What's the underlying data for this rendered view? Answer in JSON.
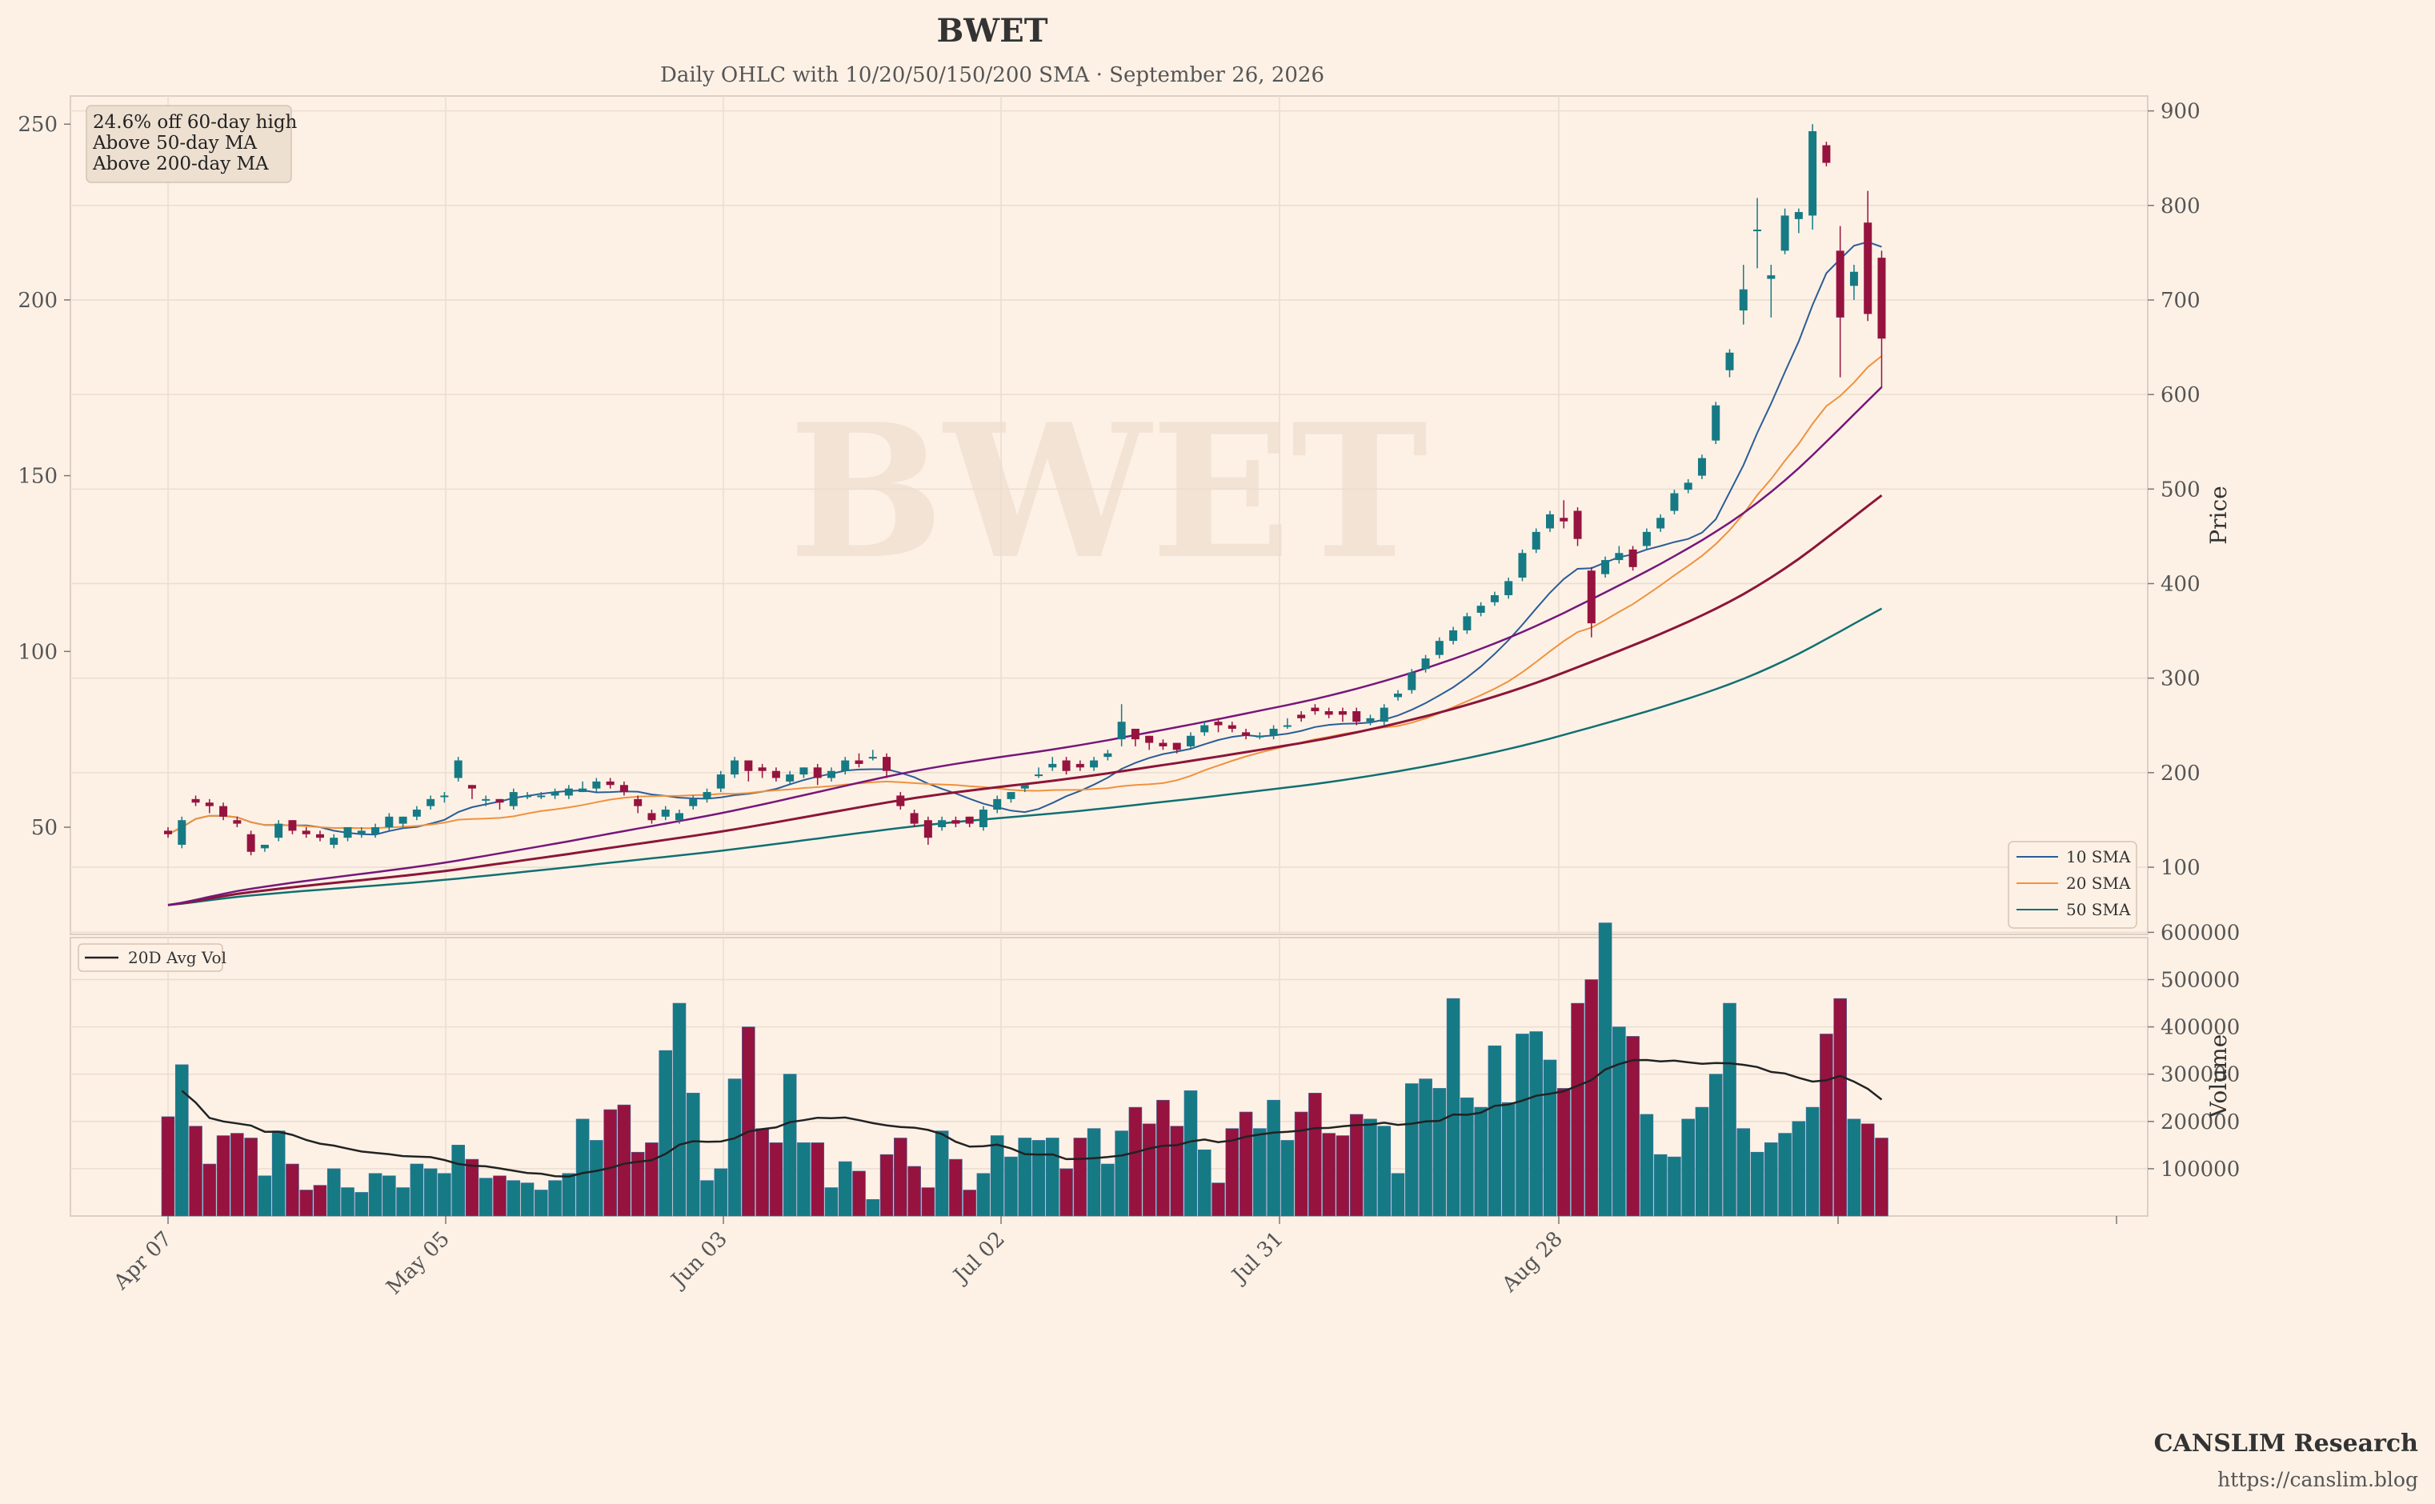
{
  "chart_data": {
    "type": "candlestick",
    "title": "BWET",
    "subtitle": "Daily OHLC with 10/20/50/150/200 SMA  ·  September 26, 2026",
    "watermark": "BWET",
    "x_tick_labels": [
      "Apr 07",
      "May 05",
      "Jun 03",
      "Jul 02",
      "Jul 31",
      "Aug 28"
    ],
    "price_axis": {
      "left_ticks": [
        50,
        100,
        150,
        200,
        250
      ],
      "right_ticks": [
        100,
        200,
        300,
        400,
        500,
        600,
        700,
        800,
        900
      ],
      "ylabel": "Price"
    },
    "volume_axis": {
      "ticks": [
        "100000",
        "200000",
        "300000",
        "400000",
        "500000",
        "600000"
      ],
      "ylabel": "Volume"
    },
    "annotation": [
      "24.6% off 60-day high",
      "Above 50-day MA",
      "Above 200-day MA"
    ],
    "legend": [
      "10 SMA",
      "20 SMA",
      "50 SMA"
    ],
    "volume_legend": "20D Avg Vol",
    "colors": {
      "up": "#167a84",
      "down": "#96133f",
      "sma10": "#2a5d96",
      "sma20": "#f0923c",
      "sma50": "#117070",
      "sma150": "#8c1538",
      "sma200": "#76177a",
      "avg_vol": "#222222"
    },
    "ohlc": [
      [
        49,
        48,
        50,
        47,
        210000
      ],
      [
        45,
        52,
        53,
        44,
        320000
      ],
      [
        58,
        57,
        59,
        56,
        190000
      ],
      [
        57,
        56,
        58,
        54,
        110000
      ],
      [
        56,
        53,
        57,
        52,
        170000
      ],
      [
        52,
        51,
        53,
        50,
        175000
      ],
      [
        48,
        43,
        49,
        42,
        165000
      ],
      [
        44,
        45,
        45,
        43,
        85000
      ],
      [
        47,
        51,
        52,
        46,
        180000
      ],
      [
        52,
        49,
        52,
        48,
        110000
      ],
      [
        49,
        48,
        50,
        47,
        55000
      ],
      [
        48,
        47,
        49,
        46,
        65000
      ],
      [
        45,
        47,
        48,
        44,
        100000
      ],
      [
        47,
        50,
        50,
        46,
        60000
      ],
      [
        48,
        49,
        50,
        47,
        50000
      ],
      [
        48,
        50,
        51,
        47,
        90000
      ],
      [
        50,
        53,
        54,
        49,
        85000
      ],
      [
        51,
        53,
        53,
        50,
        60000
      ],
      [
        53,
        55,
        56,
        52,
        110000
      ],
      [
        56,
        58,
        59,
        55,
        100000
      ],
      [
        59,
        59,
        60,
        57,
        90000
      ],
      [
        64,
        69,
        70,
        63,
        150000
      ],
      [
        62,
        61,
        62,
        58,
        120000
      ],
      [
        58,
        58,
        59,
        56,
        80000
      ],
      [
        58,
        57,
        58,
        55,
        85000
      ],
      [
        56,
        60,
        61,
        55,
        75000
      ],
      [
        59,
        59,
        60,
        58,
        70000
      ],
      [
        59,
        59,
        60,
        58,
        55000
      ],
      [
        59,
        60,
        61,
        58,
        75000
      ],
      [
        59,
        61,
        62,
        58,
        90000
      ],
      [
        60,
        61,
        63,
        60,
        205000
      ],
      [
        61,
        63,
        64,
        60,
        160000
      ],
      [
        63,
        62,
        64,
        61,
        225000
      ],
      [
        62,
        60,
        63,
        59,
        235000
      ],
      [
        58,
        56,
        59,
        54,
        135000
      ],
      [
        54,
        52,
        55,
        51,
        155000
      ],
      [
        53,
        55,
        56,
        52,
        350000
      ],
      [
        52,
        54,
        55,
        51,
        450000
      ],
      [
        56,
        58,
        59,
        55,
        260000
      ],
      [
        58,
        60,
        61,
        57,
        75000
      ],
      [
        61,
        65,
        66,
        60,
        100000
      ],
      [
        65,
        69,
        70,
        64,
        290000
      ],
      [
        69,
        66,
        69,
        63,
        400000
      ],
      [
        67,
        66,
        68,
        64,
        185000
      ],
      [
        66,
        64,
        67,
        63,
        155000
      ],
      [
        63,
        65,
        66,
        62,
        300000
      ],
      [
        65,
        67,
        67,
        64,
        155000
      ],
      [
        67,
        64,
        68,
        62,
        155000
      ],
      [
        64,
        66,
        67,
        63,
        60000
      ],
      [
        66,
        69,
        70,
        65,
        115000
      ],
      [
        69,
        68,
        71,
        67,
        95000
      ],
      [
        70,
        70,
        72,
        69,
        35000
      ],
      [
        70,
        66,
        71,
        64,
        130000
      ],
      [
        59,
        56,
        60,
        55,
        165000
      ],
      [
        54,
        51,
        55,
        50,
        105000
      ],
      [
        52,
        47,
        53,
        45,
        60000
      ],
      [
        50,
        52,
        53,
        49,
        180000
      ],
      [
        52,
        51,
        53,
        50,
        120000
      ],
      [
        53,
        51,
        53,
        50,
        55000
      ],
      [
        50,
        55,
        56,
        49,
        90000
      ],
      [
        55,
        58,
        59,
        54,
        170000
      ],
      [
        58,
        60,
        60,
        57,
        125000
      ],
      [
        61,
        62,
        62,
        60,
        165000
      ],
      [
        65,
        65,
        67,
        64,
        160000
      ],
      [
        67,
        68,
        70,
        66,
        165000
      ],
      [
        69,
        66,
        70,
        65,
        100000
      ],
      [
        68,
        67,
        69,
        66,
        165000
      ],
      [
        67,
        69,
        70,
        66,
        185000
      ],
      [
        70,
        71,
        72,
        69,
        110000
      ],
      [
        75,
        80,
        85,
        73,
        180000
      ],
      [
        78,
        75,
        78,
        73,
        230000
      ],
      [
        76,
        74,
        76,
        72,
        195000
      ],
      [
        74,
        73,
        75,
        72,
        245000
      ],
      [
        74,
        72,
        74,
        71,
        190000
      ],
      [
        73,
        76,
        77,
        72,
        265000
      ],
      [
        77,
        79,
        80,
        76,
        140000
      ],
      [
        80,
        79,
        81,
        77,
        70000
      ],
      [
        79,
        78,
        80,
        77,
        185000
      ],
      [
        77,
        76,
        78,
        75,
        220000
      ],
      [
        76,
        76,
        77,
        75,
        185000
      ],
      [
        76,
        78,
        79,
        75,
        245000
      ],
      [
        79,
        79,
        81,
        78,
        160000
      ],
      [
        82,
        81,
        83,
        80,
        220000
      ],
      [
        84,
        83,
        85,
        82,
        260000
      ],
      [
        83,
        82,
        84,
        81,
        175000
      ],
      [
        83,
        82,
        84,
        80,
        170000
      ],
      [
        83,
        80,
        84,
        79,
        215000
      ],
      [
        80,
        81,
        82,
        79,
        205000
      ],
      [
        80,
        84,
        85,
        79,
        190000
      ],
      [
        87,
        88,
        89,
        86,
        90000
      ],
      [
        89,
        94,
        95,
        88,
        280000
      ],
      [
        95,
        98,
        99,
        94,
        290000
      ],
      [
        99,
        103,
        104,
        98,
        270000
      ],
      [
        103,
        106,
        107,
        102,
        460000
      ],
      [
        106,
        110,
        111,
        105,
        250000
      ],
      [
        111,
        113,
        114,
        110,
        230000
      ],
      [
        114,
        116,
        117,
        113,
        360000
      ],
      [
        116,
        120,
        121,
        115,
        240000
      ],
      [
        121,
        128,
        129,
        120,
        385000
      ],
      [
        129,
        134,
        135,
        128,
        390000
      ],
      [
        135,
        139,
        140,
        134,
        330000
      ],
      [
        138,
        137,
        143,
        135,
        270000
      ],
      [
        140,
        132,
        141,
        130,
        450000
      ],
      [
        123,
        108,
        124,
        104,
        500000
      ],
      [
        122,
        126,
        127,
        121,
        620000
      ],
      [
        126,
        128,
        130,
        125,
        400000
      ],
      [
        129,
        124,
        130,
        123,
        380000
      ],
      [
        130,
        134,
        135,
        129,
        215000
      ],
      [
        135,
        138,
        139,
        134,
        130000
      ],
      [
        140,
        145,
        146,
        139,
        125000
      ],
      [
        146,
        148,
        149,
        145,
        205000
      ],
      [
        150,
        155,
        156,
        149,
        230000
      ],
      [
        160,
        170,
        171,
        159,
        300000
      ],
      [
        180,
        185,
        186,
        178,
        450000
      ],
      [
        197,
        203,
        210,
        193,
        185000
      ],
      [
        220,
        220,
        229,
        209,
        135000
      ],
      [
        206,
        207,
        210,
        195,
        155000
      ],
      [
        214,
        224,
        226,
        213,
        175000
      ],
      [
        223,
        225,
        226,
        219,
        200000
      ],
      [
        224,
        248,
        250,
        220,
        230000
      ],
      [
        244,
        239,
        245,
        238,
        385000
      ],
      [
        214,
        195,
        221,
        178,
        460000
      ],
      [
        204,
        208,
        210,
        200,
        205000
      ],
      [
        222,
        196,
        231,
        194,
        195000
      ],
      [
        212,
        189,
        214,
        175,
        165000
      ]
    ]
  }
}
